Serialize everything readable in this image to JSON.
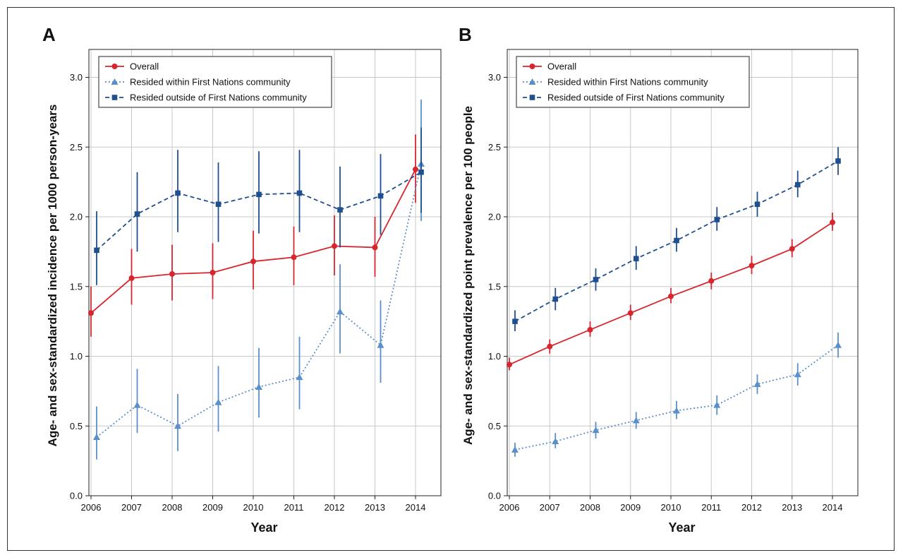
{
  "colors": {
    "overall": "#d7262e",
    "within": "#5b8fc9",
    "outside": "#1f4f8f"
  },
  "chart_data": [
    {
      "panel": "A",
      "type": "line",
      "xlabel": "Year",
      "ylabel": "Age- and sex-standardized incidence per 1000 person-years",
      "ylim": [
        0,
        3.2
      ],
      "yticks": [
        "0.0",
        "0.5",
        "1.0",
        "1.5",
        "2.0",
        "2.5",
        "3.0"
      ],
      "x": [
        "2006",
        "2007",
        "2008",
        "2009",
        "2010",
        "2011",
        "2012",
        "2013",
        "2014"
      ],
      "grid": true,
      "legend_position": "top-left",
      "series": [
        {
          "name": "Overall",
          "key": "overall",
          "marker": "circle",
          "style": "solid",
          "values": [
            1.31,
            1.56,
            1.59,
            1.6,
            1.68,
            1.71,
            1.79,
            1.78,
            2.34
          ],
          "lower": [
            1.14,
            1.37,
            1.4,
            1.41,
            1.48,
            1.51,
            1.58,
            1.57,
            2.1
          ],
          "upper": [
            1.5,
            1.77,
            1.8,
            1.81,
            1.9,
            1.93,
            2.01,
            2.0,
            2.59
          ]
        },
        {
          "name": "Resided within First Nations community",
          "key": "within",
          "marker": "triangle",
          "style": "dotted",
          "values": [
            0.42,
            0.65,
            0.5,
            0.67,
            0.78,
            0.85,
            1.32,
            1.08,
            2.38
          ],
          "lower": [
            0.26,
            0.45,
            0.32,
            0.46,
            0.56,
            0.62,
            1.02,
            0.81,
            1.97
          ],
          "upper": [
            0.64,
            0.91,
            0.73,
            0.93,
            1.06,
            1.14,
            1.66,
            1.4,
            2.84
          ]
        },
        {
          "name": "Resided outside of First Nations community",
          "key": "outside",
          "marker": "square",
          "style": "dashed",
          "values": [
            1.76,
            2.02,
            2.17,
            2.09,
            2.16,
            2.17,
            2.05,
            2.15,
            2.32
          ],
          "lower": [
            1.51,
            1.75,
            1.89,
            1.82,
            1.88,
            1.89,
            1.78,
            1.87,
            2.03
          ],
          "upper": [
            2.04,
            2.32,
            2.48,
            2.39,
            2.47,
            2.48,
            2.36,
            2.45,
            2.64
          ]
        }
      ]
    },
    {
      "panel": "B",
      "type": "line",
      "xlabel": "Year",
      "ylabel": "Age- and sex-standardized point prevalence per 100 people",
      "ylim": [
        0,
        3.2
      ],
      "yticks": [
        "0.0",
        "0.5",
        "1.0",
        "1.5",
        "2.0",
        "2.5",
        "3.0"
      ],
      "x": [
        "2006",
        "2007",
        "2008",
        "2009",
        "2010",
        "2011",
        "2012",
        "2013",
        "2014"
      ],
      "grid": true,
      "legend_position": "top-left",
      "series": [
        {
          "name": "Overall",
          "key": "overall",
          "marker": "circle",
          "style": "solid",
          "values": [
            0.94,
            1.07,
            1.19,
            1.31,
            1.43,
            1.54,
            1.65,
            1.77,
            1.96
          ],
          "lower": [
            0.9,
            1.02,
            1.14,
            1.26,
            1.38,
            1.48,
            1.59,
            1.71,
            1.9
          ],
          "upper": [
            0.99,
            1.12,
            1.25,
            1.37,
            1.49,
            1.6,
            1.72,
            1.84,
            2.03
          ]
        },
        {
          "name": "Resided within First Nations community",
          "key": "within",
          "marker": "triangle",
          "style": "dotted",
          "values": [
            0.33,
            0.39,
            0.47,
            0.54,
            0.61,
            0.65,
            0.8,
            0.87,
            1.08
          ],
          "lower": [
            0.28,
            0.34,
            0.41,
            0.48,
            0.55,
            0.58,
            0.73,
            0.79,
            0.99
          ],
          "upper": [
            0.38,
            0.45,
            0.53,
            0.6,
            0.68,
            0.72,
            0.87,
            0.95,
            1.17
          ]
        },
        {
          "name": "Resided outside of First Nations community",
          "key": "outside",
          "marker": "square",
          "style": "dashed",
          "values": [
            1.25,
            1.41,
            1.55,
            1.7,
            1.83,
            1.98,
            2.09,
            2.23,
            2.4
          ],
          "lower": [
            1.18,
            1.33,
            1.47,
            1.62,
            1.75,
            1.9,
            2.0,
            2.14,
            2.3
          ],
          "upper": [
            1.33,
            1.49,
            1.63,
            1.79,
            1.92,
            2.07,
            2.18,
            2.33,
            2.5
          ]
        }
      ]
    }
  ]
}
